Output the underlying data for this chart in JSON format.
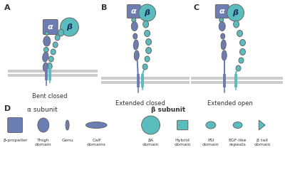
{
  "bg_color": "#ffffff",
  "alpha_color": "#6b7db3",
  "beta_color": "#5bbcbd",
  "membrane_color": "#cccccc",
  "text_color": "#333333",
  "panel_labels": [
    "A",
    "B",
    "C",
    "D"
  ],
  "panel_titles": [
    "Bent closed",
    "Extended closed",
    "Extended open"
  ],
  "legend_alpha_label": "α subunit",
  "legend_beta_label": "β subunit",
  "alpha_shapes": [
    "β-propeller",
    "Thigh\ndomain",
    "Genu",
    "Calf\ndomains"
  ],
  "beta_shapes": [
    "βA\ndomain",
    "Hybrid\ndomain",
    "PSI\ndomain",
    "EGF-like\nrepeats",
    "β tail\ndomain"
  ],
  "figsize": [
    4.0,
    2.49
  ],
  "dpi": 100
}
